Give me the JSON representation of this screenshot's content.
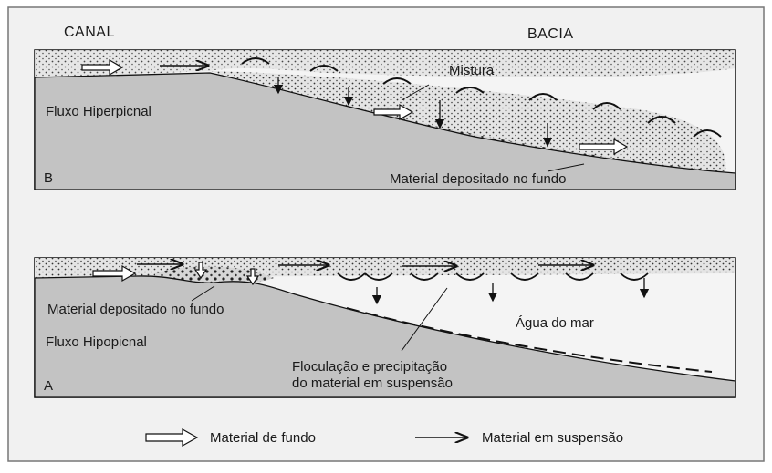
{
  "header": {
    "left": "CANAL",
    "right": "BACIA"
  },
  "panels": [
    {
      "label": "B",
      "flow": "Fluxo Hiperpicnal",
      "mixing": "Mistura",
      "deposit": "Material depositado no fundo"
    },
    {
      "label": "A",
      "flow": "Fluxo Hipopicnal",
      "deposit": "Material depositado no fundo",
      "water": "Água do mar",
      "flocculation": [
        "Floculação e precipitação",
        "do material em suspensão"
      ]
    }
  ],
  "legend": [
    {
      "label": "Material de fundo"
    },
    {
      "label": "Material em suspensão"
    }
  ]
}
